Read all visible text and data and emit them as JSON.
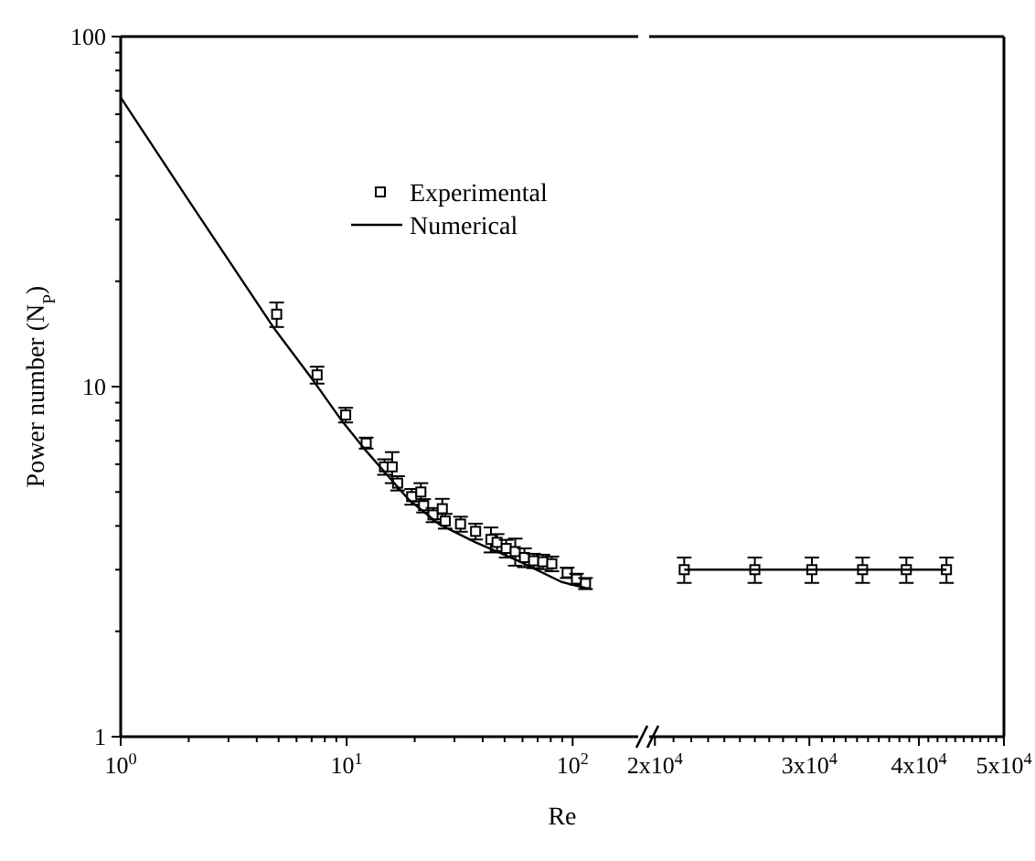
{
  "chart_data": [
    {
      "type": "scatter",
      "ylabel": "Power number (N$_{P}$)",
      "xlabel": "Re",
      "log": "xy",
      "xlim": [
        1,
        195
      ],
      "ylim": [
        1,
        100
      ],
      "xticks": [
        {
          "value": 1,
          "label": "10$^{0}$"
        },
        {
          "value": 2,
          "label": null
        },
        {
          "value": 3,
          "label": null
        },
        {
          "value": 4,
          "label": null
        },
        {
          "value": 5,
          "label": null
        },
        {
          "value": 6,
          "label": null
        },
        {
          "value": 7,
          "label": null
        },
        {
          "value": 8,
          "label": null
        },
        {
          "value": 9,
          "label": null
        },
        {
          "value": 10,
          "label": "10$^{1}$"
        },
        {
          "value": 20,
          "label": null
        },
        {
          "value": 30,
          "label": null
        },
        {
          "value": 40,
          "label": null
        },
        {
          "value": 50,
          "label": null
        },
        {
          "value": 60,
          "label": null
        },
        {
          "value": 70,
          "label": null
        },
        {
          "value": 80,
          "label": null
        },
        {
          "value": 90,
          "label": null
        },
        {
          "value": 100,
          "label": "10$^{2}$"
        }
      ],
      "yticks": [
        1,
        {
          "value": 2,
          "label": null
        },
        {
          "value": 3,
          "label": null
        },
        {
          "value": 4,
          "label": null
        },
        {
          "value": 5,
          "label": null
        },
        {
          "value": 6,
          "label": null
        },
        {
          "value": 7,
          "label": null
        },
        {
          "value": 8,
          "label": null
        },
        {
          "value": 9,
          "label": null
        },
        10,
        {
          "value": 20,
          "label": null
        },
        {
          "value": 30,
          "label": null
        },
        {
          "value": 40,
          "label": null
        },
        {
          "value": 50,
          "label": null
        },
        {
          "value": 60,
          "label": null
        },
        {
          "value": 70,
          "label": null
        },
        {
          "value": 80,
          "label": null
        },
        {
          "value": 90,
          "label": null
        },
        100
      ],
      "legend": "top",
      "series": [
        {
          "name": "Experimental",
          "marker": "square",
          "color": "#000000",
          "x": [
            4.9,
            7.4,
            9.9,
            12.2,
            14.7,
            15.9,
            16.8,
            19.4,
            21.3,
            21.9,
            24.1,
            26.5,
            27.3,
            31.9,
            37.2,
            43.5,
            46.3,
            50.8,
            55.7,
            61.2,
            67.2,
            73.8,
            80.9,
            94.6,
            104,
            114
          ],
          "values": [
            16.1,
            10.8,
            8.3,
            6.9,
            5.9,
            5.9,
            5.3,
            4.85,
            5.0,
            4.57,
            4.3,
            4.48,
            4.13,
            4.05,
            3.86,
            3.66,
            3.59,
            3.45,
            3.38,
            3.25,
            3.18,
            3.16,
            3.12,
            2.94,
            2.82,
            2.74
          ],
          "errors": [
            1.3,
            0.6,
            0.4,
            0.25,
            0.3,
            0.6,
            0.25,
            0.25,
            0.3,
            0.2,
            0.2,
            0.3,
            0.2,
            0.2,
            0.2,
            0.3,
            0.2,
            0.2,
            0.3,
            0.2,
            0.15,
            0.15,
            0.15,
            0.1,
            0.1,
            0.1
          ]
        },
        {
          "name": "Numerical",
          "type": "line",
          "marker": "none",
          "color": "#000000",
          "x": [
            1,
            2,
            4.8,
            7.2,
            9.5,
            12.2,
            18.8,
            25.6,
            37.2,
            57.5,
            88.9,
            101,
            114
          ],
          "values": [
            67,
            34,
            14.6,
            10.3,
            8.0,
            6.55,
            4.76,
            4.05,
            3.59,
            3.18,
            2.77,
            2.71,
            2.66
          ]
        }
      ]
    },
    {
      "type": "scatter",
      "log": "xy",
      "xlim": [
        19700,
        50000
      ],
      "ylim": [
        1,
        100
      ],
      "tick_labels": "x",
      "xticks": [
        {
          "value": 20000,
          "label": "2x10$^{4}$"
        },
        {
          "value": 21000,
          "label": null
        },
        {
          "value": 22000,
          "label": null
        },
        {
          "value": 23000,
          "label": null
        },
        {
          "value": 24000,
          "label": null
        },
        {
          "value": 25000,
          "label": null
        },
        {
          "value": 26000,
          "label": null
        },
        {
          "value": 27000,
          "label": null
        },
        {
          "value": 28000,
          "label": null
        },
        {
          "value": 29000,
          "label": null
        },
        {
          "value": 30000,
          "label": "3x10$^{4}$"
        },
        {
          "value": 31000,
          "label": null
        },
        {
          "value": 32000,
          "label": null
        },
        {
          "value": 33000,
          "label": null
        },
        {
          "value": 34000,
          "label": null
        },
        {
          "value": 35000,
          "label": null
        },
        {
          "value": 36000,
          "label": null
        },
        {
          "value": 37000,
          "label": null
        },
        {
          "value": 38000,
          "label": null
        },
        {
          "value": 39000,
          "label": null
        },
        {
          "value": 40000,
          "label": "4x10$^{4}$"
        },
        {
          "value": 41000,
          "label": null
        },
        {
          "value": 42000,
          "label": null
        },
        {
          "value": 43000,
          "label": null
        },
        {
          "value": 44000,
          "label": null
        },
        {
          "value": 45000,
          "label": null
        },
        {
          "value": 46000,
          "label": null
        },
        {
          "value": 47000,
          "label": null
        },
        {
          "value": 48000,
          "label": null
        },
        {
          "value": 49000,
          "label": null
        },
        {
          "value": 50000,
          "label": "5x10$^{4}$"
        }
      ],
      "series": [
        {
          "marker": "square",
          "color": "#000000",
          "x": [
            21600,
            26000,
            30200,
            34500,
            38700,
            43000
          ],
          "values": [
            3.0,
            3.0,
            3.0,
            3.0,
            3.0,
            3.0
          ],
          "errors": [
            0.25,
            0.25,
            0.25,
            0.25,
            0.25,
            0.25
          ]
        },
        {
          "type": "line",
          "marker": "none",
          "color": "#000000",
          "x": [
            21600,
            43000
          ],
          "values": [
            3.0,
            3.0
          ]
        }
      ]
    }
  ]
}
